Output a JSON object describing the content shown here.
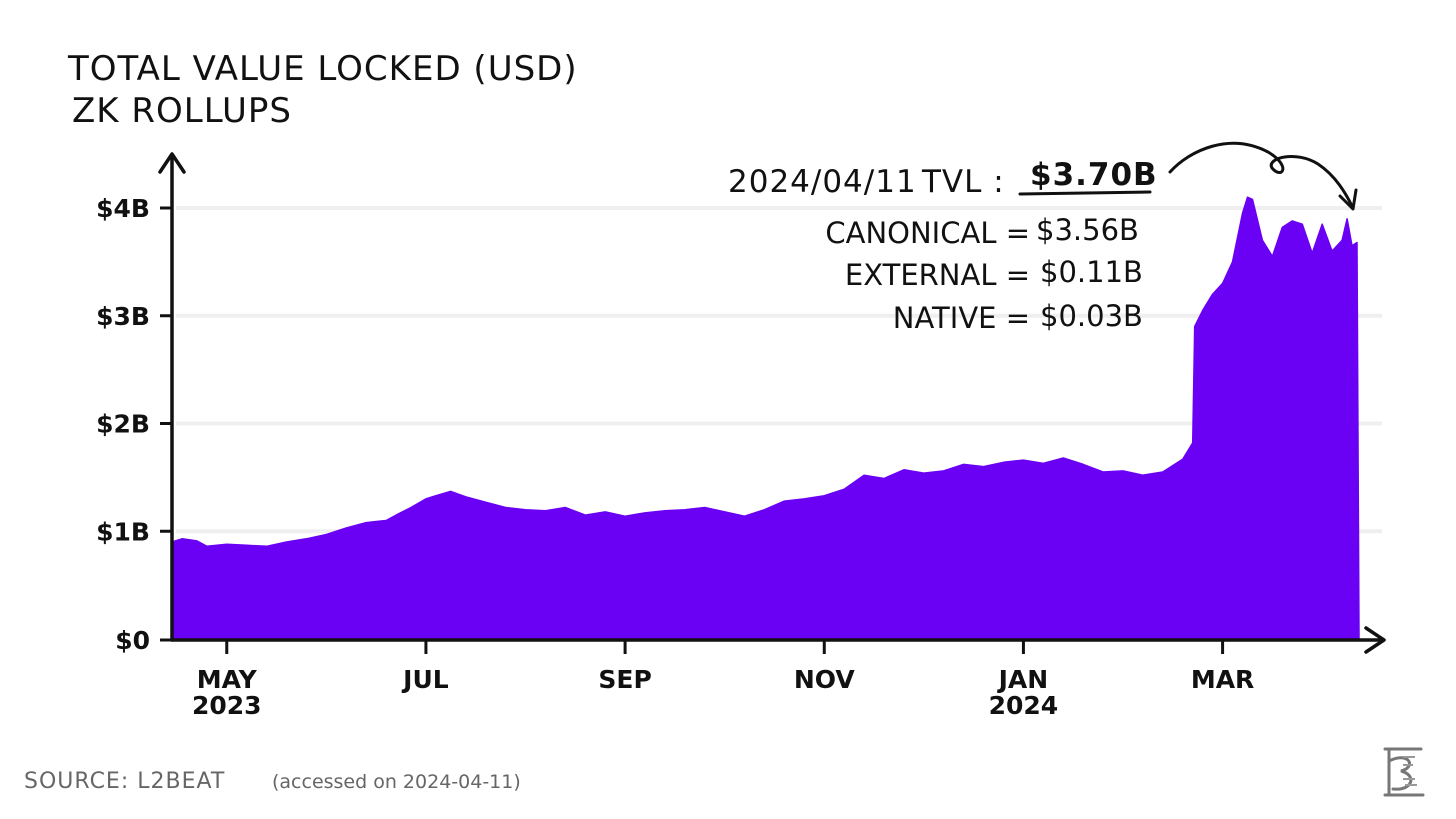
{
  "source": {
    "label": "SOURCE: L2BEAT",
    "note": "(accessed on 2024-04-11)"
  },
  "colors": {
    "area": "#6a00f4",
    "axis": "#111111",
    "grid": "#efefef",
    "text": "#111111",
    "source": "#666666"
  },
  "chart_data": {
    "type": "area",
    "title": "TOTAL VALUE LOCKED (USD)",
    "subtitle": "ZK ROLLUPS",
    "xlabel": "",
    "ylabel": "",
    "ylim": [
      0,
      4.3
    ],
    "grid": true,
    "y_ticks": [
      {
        "value": 0,
        "label": "$0"
      },
      {
        "value": 1,
        "label": "$1B"
      },
      {
        "value": 2,
        "label": "$2B"
      },
      {
        "value": 3,
        "label": "$3B"
      },
      {
        "value": 4,
        "label": "$4B"
      }
    ],
    "x_ticks": [
      {
        "month": 1,
        "label": "MAY",
        "label2": "2023"
      },
      {
        "month": 3,
        "label": "JUL",
        "label2": ""
      },
      {
        "month": 5,
        "label": "SEP",
        "label2": ""
      },
      {
        "month": 7,
        "label": "NOV",
        "label2": ""
      },
      {
        "month": 9,
        "label": "JAN",
        "label2": "2024"
      },
      {
        "month": 11,
        "label": "MAR",
        "label2": ""
      }
    ],
    "x_unit": "months since 2023-04-01",
    "x_range": [
      0.45,
      12.4
    ],
    "series": [
      {
        "name": "TVL (USD billions)",
        "x": [
          0.45,
          0.55,
          0.7,
          0.8,
          1.0,
          1.2,
          1.4,
          1.6,
          1.8,
          2.0,
          2.2,
          2.4,
          2.6,
          2.7,
          2.85,
          3.0,
          3.1,
          3.25,
          3.4,
          3.6,
          3.8,
          4.0,
          4.2,
          4.4,
          4.6,
          4.8,
          5.0,
          5.2,
          5.4,
          5.6,
          5.8,
          6.0,
          6.2,
          6.4,
          6.6,
          6.8,
          7.0,
          7.2,
          7.4,
          7.6,
          7.8,
          8.0,
          8.2,
          8.4,
          8.6,
          8.8,
          9.0,
          9.2,
          9.4,
          9.6,
          9.8,
          10.0,
          10.2,
          10.4,
          10.6,
          10.7,
          10.72,
          10.8,
          10.9,
          11.0,
          11.1,
          11.2,
          11.25,
          11.3,
          11.4,
          11.5,
          11.6,
          11.7,
          11.8,
          11.9,
          12.0,
          12.1,
          12.2,
          12.25,
          12.3,
          12.35,
          12.37
        ],
        "values": [
          0.9,
          0.93,
          0.91,
          0.86,
          0.88,
          0.87,
          0.86,
          0.9,
          0.93,
          0.97,
          1.03,
          1.08,
          1.1,
          1.15,
          1.22,
          1.3,
          1.33,
          1.37,
          1.32,
          1.27,
          1.22,
          1.2,
          1.19,
          1.22,
          1.15,
          1.18,
          1.14,
          1.17,
          1.19,
          1.2,
          1.22,
          1.18,
          1.14,
          1.2,
          1.28,
          1.3,
          1.33,
          1.39,
          1.52,
          1.49,
          1.57,
          1.54,
          1.56,
          1.62,
          1.6,
          1.64,
          1.66,
          1.63,
          1.68,
          1.62,
          1.55,
          1.56,
          1.52,
          1.55,
          1.67,
          1.82,
          2.9,
          3.05,
          3.2,
          3.3,
          3.5,
          3.95,
          4.1,
          4.08,
          3.7,
          3.55,
          3.82,
          3.88,
          3.85,
          3.58,
          3.85,
          3.6,
          3.7,
          3.9,
          3.65,
          3.68,
          0.05
        ]
      }
    ],
    "annotations": {
      "date": "2024/04/11",
      "tvl_label": "TVL :",
      "tvl_value": "$3.70B",
      "canonical_label": "CANONICAL =",
      "canonical_value": "$3.56B",
      "external_label": "EXTERNAL =",
      "external_value": "$0.11B",
      "native_label": "NATIVE =",
      "native_value": "$0.03B"
    }
  }
}
